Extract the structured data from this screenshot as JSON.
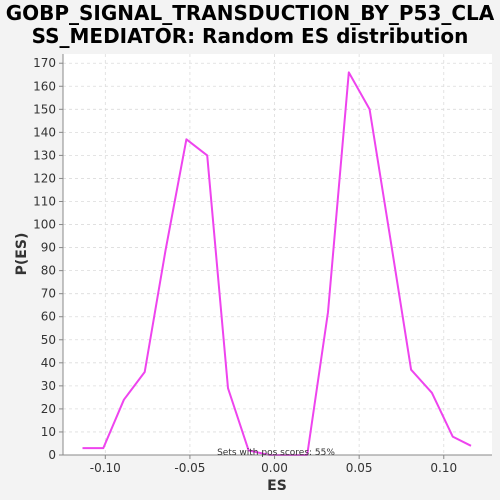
{
  "chart_data": {
    "type": "line",
    "title_line1": "GOBP_SIGNAL_TRANSDUCTION_BY_P53_CLA",
    "title_line2": "SS_MEDIATOR: Random ES distribution",
    "xlabel": "ES",
    "ylabel": "P(ES)",
    "xlim": [
      -0.125,
      0.1285
    ],
    "ylim": [
      0,
      174
    ],
    "xticks": [
      -0.1,
      -0.05,
      0.0,
      0.05,
      0.1
    ],
    "xtick_labels": [
      "-0.10",
      "-0.05",
      "0.00",
      "0.05",
      "0.10"
    ],
    "yticks": [
      0,
      10,
      20,
      30,
      40,
      50,
      60,
      70,
      80,
      90,
      100,
      110,
      120,
      130,
      140,
      150,
      160,
      170
    ],
    "ytick_labels": [
      "0",
      "10",
      "20",
      "30",
      "40",
      "50",
      "60",
      "70",
      "80",
      "90",
      "100",
      "110",
      "120",
      "130",
      "140",
      "150",
      "160",
      "170"
    ],
    "grid": true,
    "annotation": "Sets with pos scores: 55%",
    "series": [
      {
        "color": "#ee44ee",
        "x": [
          -0.1135,
          -0.1012,
          -0.089,
          -0.0767,
          -0.0644,
          -0.0521,
          -0.0398,
          -0.0275,
          -0.0153,
          -0.003,
          0.0093,
          0.0193,
          0.0316,
          0.0439,
          0.0562,
          0.0684,
          0.0807,
          0.093,
          0.1053,
          0.1161
        ],
        "y": [
          3,
          3,
          24,
          36,
          89,
          137,
          130,
          29,
          2,
          0,
          0,
          0,
          62,
          166,
          150,
          94,
          37,
          27,
          8,
          4
        ]
      }
    ]
  }
}
